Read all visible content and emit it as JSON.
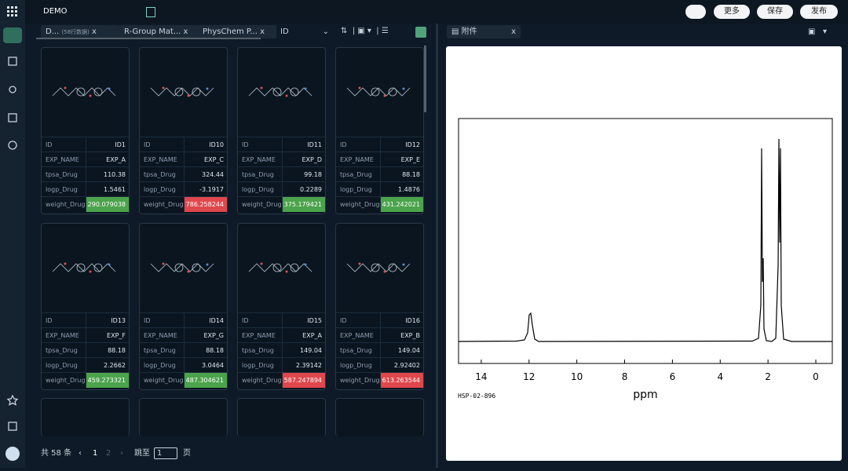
{
  "header": {
    "project": "DEMO",
    "buttons": [
      "更多",
      "保存",
      "发布"
    ]
  },
  "tabs": [
    {
      "label": "D...",
      "note": "(58行数据)",
      "close": "x"
    },
    {
      "label": "R-Group Mat...",
      "close": "x"
    },
    {
      "label": "PhysChem P...",
      "close": "x"
    }
  ],
  "sort_field": "ID",
  "field_labels": [
    "ID",
    "EXP_NAME",
    "tpsa_Drug",
    "logp_Drug",
    "weight_Drug"
  ],
  "cards": [
    {
      "values": [
        "ID1",
        "EXP_A",
        110.38,
        1.5461,
        290.079038
      ],
      "color": "#4ba34b"
    },
    {
      "values": [
        "ID10",
        "EXP_C",
        324.44,
        -3.1917,
        786.258244
      ],
      "color": "#e0474c"
    },
    {
      "values": [
        "ID11",
        "EXP_D",
        99.18,
        0.2289,
        375.179421
      ],
      "color": "#4ba34b"
    },
    {
      "values": [
        "ID12",
        "EXP_E",
        88.18,
        1.4876,
        431.242021
      ],
      "color": "#4ba34b"
    },
    {
      "values": [
        "ID13",
        "EXP_F",
        88.18,
        2.2662,
        459.273321
      ],
      "color": "#4ba34b"
    },
    {
      "values": [
        "ID14",
        "EXP_G",
        88.18,
        3.0464,
        487.304621
      ],
      "color": "#4ba34b"
    },
    {
      "values": [
        "ID15",
        "EXP_A",
        149.04,
        2.39142,
        587.247894
      ],
      "color": "#e0474c"
    },
    {
      "values": [
        "ID16",
        "EXP_B",
        149.04,
        2.92402,
        613.263544
      ],
      "color": "#e0474c"
    }
  ],
  "pagination": {
    "total": "共 58 条",
    "pages": [
      1,
      2
    ],
    "jump": "跳至",
    "page_input": 1,
    "unit": "页"
  },
  "attachment": {
    "tab": "附件",
    "close": "x",
    "spectrum": {
      "xlim": [
        14.95,
        -0.69
      ],
      "xticks": [
        14,
        12,
        10,
        8,
        6,
        4,
        2,
        0
      ],
      "xlabel": "ppm",
      "sample": "HSP-02-896"
    }
  }
}
